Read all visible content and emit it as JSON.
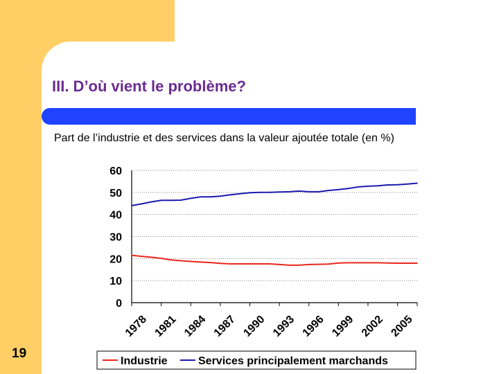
{
  "slide": {
    "title": "III. D’où vient le problème?",
    "subtitle": "Part de l’industrie et des services dans la valeur ajoutée totale (en %)",
    "page_number": "19"
  },
  "colors": {
    "background_accent": "#FFCF66",
    "title": "#6B2C91",
    "bar": "#1F43FF"
  },
  "chart_data": {
    "type": "line",
    "title": "",
    "xlabel": "",
    "ylabel": "",
    "ylim": [
      0,
      60
    ],
    "yticks": [
      0,
      10,
      20,
      30,
      40,
      50,
      60
    ],
    "grid": "horizontal",
    "legend_position": "bottom",
    "x": [
      1978,
      1979,
      1980,
      1981,
      1982,
      1983,
      1984,
      1985,
      1986,
      1987,
      1988,
      1989,
      1990,
      1991,
      1992,
      1993,
      1994,
      1995,
      1996,
      1997,
      1998,
      1999,
      2000,
      2001,
      2002,
      2003,
      2004,
      2005,
      2006,
      2007
    ],
    "xtick_labels": [
      "1978",
      "1981",
      "1984",
      "1987",
      "1990",
      "1993",
      "1996",
      "1999",
      "2002",
      "2005"
    ],
    "xtick_values": [
      1978,
      1981,
      1984,
      1987,
      1990,
      1993,
      1996,
      1999,
      2002,
      2005
    ],
    "series": [
      {
        "name": "Industrie",
        "color": "#E8261C",
        "values": [
          21.5,
          21,
          20.6,
          20.1,
          19.4,
          19,
          18.7,
          18.4,
          18.2,
          17.8,
          17.6,
          17.6,
          17.6,
          17.6,
          17.6,
          17.3,
          17,
          17,
          17.3,
          17.4,
          17.5,
          18,
          18.1,
          18.1,
          18.1,
          18.1,
          18,
          17.9,
          17.9,
          17.9
        ]
      },
      {
        "name": "Services principalement marchands",
        "color": "#1A1AAE",
        "values": [
          44,
          44.8,
          45.7,
          46.4,
          46.4,
          46.5,
          47.3,
          48,
          48,
          48.3,
          48.9,
          49.4,
          49.9,
          50,
          50,
          50.2,
          50.3,
          50.6,
          50.3,
          50.3,
          50.9,
          51.3,
          51.8,
          52.5,
          52.8,
          53,
          53.4,
          53.5,
          53.8,
          54.2
        ]
      }
    ]
  }
}
